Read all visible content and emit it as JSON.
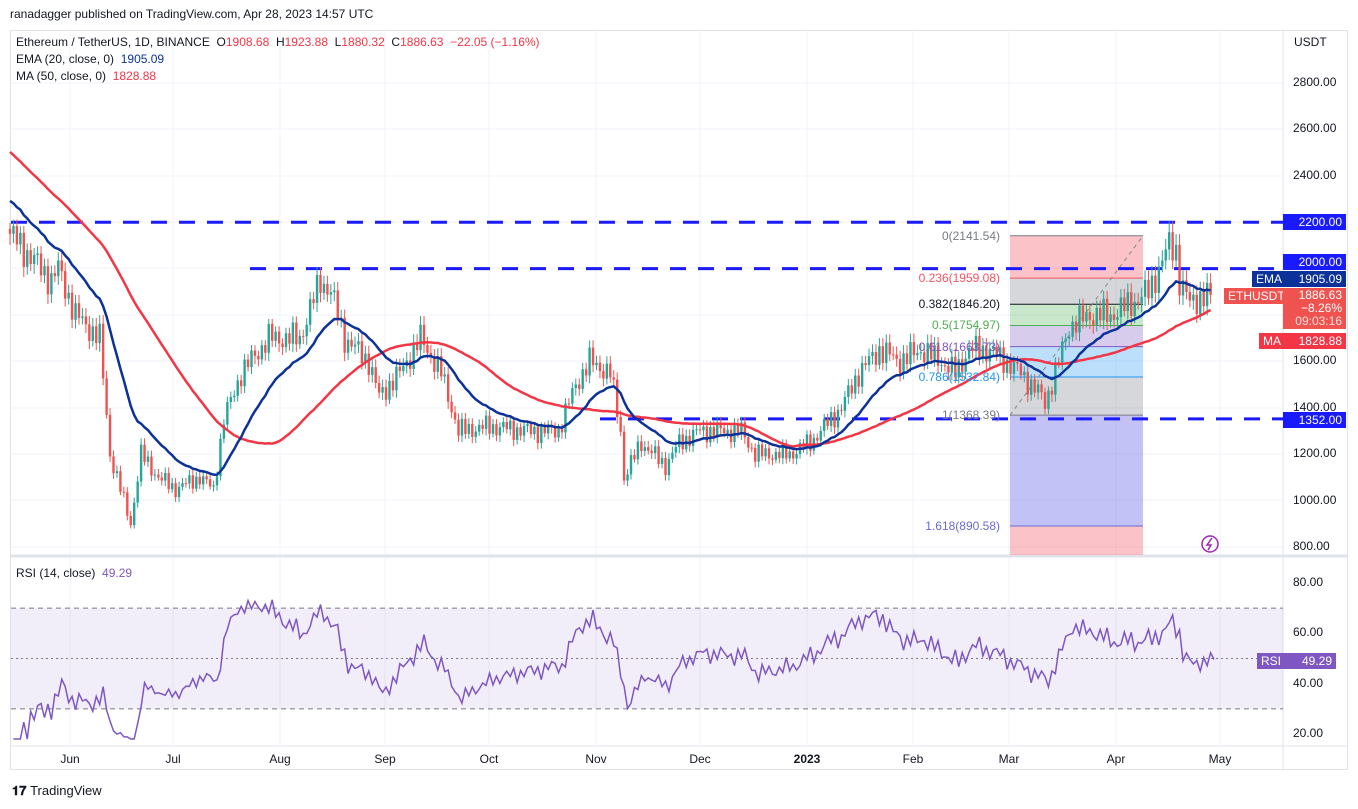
{
  "header": {
    "published": "ranadagger published on TradingView.com, Apr 28, 2023 14:57 UTC"
  },
  "legend": {
    "symbol": "Ethereum / TetherUS, 1D, BINANCE",
    "o_label": "O",
    "o": "1908.68",
    "h_label": "H",
    "h": "1923.88",
    "l_label": "L",
    "l": "1880.32",
    "c_label": "C",
    "c": "1886.63",
    "change": "−22.05 (−1.16%)",
    "ema": "EMA (20, close, 0)",
    "ema_value": "1905.09",
    "ma": "MA (50, close, 0)",
    "ma_value": "1828.88",
    "rsi": "RSI (14, close)",
    "rsi_value": "49.29"
  },
  "price_axis": {
    "currency": "USDT",
    "ticks": [
      "2800.00",
      "2600.00",
      "2400.00",
      "2200.00",
      "2000.00",
      "1600.00",
      "1400.00",
      "1200.00",
      "1000.00",
      "800.00"
    ]
  },
  "rsi_axis": {
    "ticks": [
      "80.00",
      "60.00",
      "40.00",
      "20.00"
    ]
  },
  "tags": {
    "h2200": "2200.00",
    "h2000": "2000.00",
    "h1352": "1352.00",
    "ema_label": "EMA",
    "ema_value": "1905.09",
    "sym_label": "ETHUSDT",
    "price": "1886.63",
    "pct": "−8.26%",
    "countdown": "09:03:16",
    "ma_label": "MA",
    "ma_value": "1828.88",
    "rsi_label": "RSI",
    "rsi_value": "49.29"
  },
  "time_axis": [
    "Jun",
    "Jul",
    "Aug",
    "Sep",
    "Oct",
    "Nov",
    "Dec",
    "2023",
    "Feb",
    "Mar",
    "Apr",
    "May"
  ],
  "fib_labels": [
    "0(2141.54)",
    "0.236(1959.08)",
    "0.382(1846.20)",
    "0.5(1754.97)",
    "0.618(1663.73)",
    "0.786(1532.84)",
    "1(1368.39)",
    "1.618(890.58)"
  ],
  "logo": "TradingView",
  "colors": {
    "up": "#26a69a",
    "down": "#ef5350",
    "ema": "#0c3299",
    "ma": "#f23645",
    "levels": "#1a1aff",
    "rsi": "#7e57c2"
  },
  "chart_data": {
    "type": "candlestick",
    "title": "Ethereum / TetherUS, 1D, BINANCE",
    "ylim": [
      780,
      3020
    ],
    "horizontal_levels": [
      2200,
      2000,
      1352
    ],
    "fib_levels": [
      {
        "r": 0,
        "p": 2141.54
      },
      {
        "r": 0.236,
        "p": 1959.08
      },
      {
        "r": 0.382,
        "p": 1846.2
      },
      {
        "r": 0.5,
        "p": 1754.97
      },
      {
        "r": 0.618,
        "p": 1663.73
      },
      {
        "r": 0.786,
        "p": 1532.84
      },
      {
        "r": 1,
        "p": 1368.39
      },
      {
        "r": 1.618,
        "p": 890.58
      }
    ],
    "close_path": [
      [
        "2022-05-15",
        2150
      ],
      [
        "2022-05-27",
        1950
      ],
      [
        "2022-05-29",
        2000
      ],
      [
        "2022-06-03",
        1800
      ],
      [
        "2022-06-10",
        1700
      ],
      [
        "2022-06-13",
        1200
      ],
      [
        "2022-06-17",
        1000
      ],
      [
        "2022-06-19",
        900
      ],
      [
        "2022-06-22",
        1200
      ],
      [
        "2022-06-27",
        1100
      ],
      [
        "2022-07-02",
        1050
      ],
      [
        "2022-07-09",
        1100
      ],
      [
        "2022-07-13",
        1050
      ],
      [
        "2022-07-16",
        1350
      ],
      [
        "2022-07-21",
        1550
      ],
      [
        "2022-07-29",
        1700
      ],
      [
        "2022-08-07",
        1700
      ],
      [
        "2022-08-13",
        1950
      ],
      [
        "2022-08-16",
        1900
      ],
      [
        "2022-08-20",
        1700
      ],
      [
        "2022-08-27",
        1600
      ],
      [
        "2022-08-30",
        1450
      ],
      [
        "2022-09-05",
        1550
      ],
      [
        "2022-09-11",
        1700
      ],
      [
        "2022-09-17",
        1550
      ],
      [
        "2022-09-22",
        1300
      ],
      [
        "2022-10-01",
        1320
      ],
      [
        "2022-10-13",
        1300
      ],
      [
        "2022-10-21",
        1300
      ],
      [
        "2022-10-26",
        1500
      ],
      [
        "2022-10-30",
        1600
      ],
      [
        "2022-11-05",
        1550
      ],
      [
        "2022-11-08",
        1300
      ],
      [
        "2022-11-09",
        1100
      ],
      [
        "2022-11-14",
        1250
      ],
      [
        "2022-11-21",
        1150
      ],
      [
        "2022-11-25",
        1250
      ],
      [
        "2022-12-01",
        1300
      ],
      [
        "2022-12-13",
        1300
      ],
      [
        "2022-12-17",
        1200
      ],
      [
        "2022-12-27",
        1200
      ],
      [
        "2023-01-02",
        1250
      ],
      [
        "2023-01-11",
        1400
      ],
      [
        "2023-01-16",
        1550
      ],
      [
        "2023-01-22",
        1650
      ],
      [
        "2023-01-28",
        1600
      ],
      [
        "2023-02-03",
        1650
      ],
      [
        "2023-02-09",
        1600
      ],
      [
        "2023-02-13",
        1550
      ],
      [
        "2023-02-17",
        1650
      ],
      [
        "2023-02-23",
        1650
      ],
      [
        "2023-03-04",
        1550
      ],
      [
        "2023-03-10",
        1450
      ],
      [
        "2023-03-11",
        1420
      ],
      [
        "2023-03-15",
        1600
      ],
      [
        "2023-03-18",
        1750
      ],
      [
        "2023-03-24",
        1800
      ],
      [
        "2023-03-30",
        1800
      ],
      [
        "2023-04-05",
        1850
      ],
      [
        "2023-04-10",
        1900
      ],
      [
        "2023-04-13",
        2000
      ],
      [
        "2023-04-16",
        2100
      ],
      [
        "2023-04-18",
        2080
      ],
      [
        "2023-04-19",
        1950
      ],
      [
        "2023-04-22",
        1850
      ],
      [
        "2023-04-25",
        1880
      ],
      [
        "2023-04-28",
        1886.63
      ]
    ],
    "rsi_bands": [
      70,
      50,
      30
    ],
    "rsi_ylim": [
      13,
      93
    ]
  }
}
